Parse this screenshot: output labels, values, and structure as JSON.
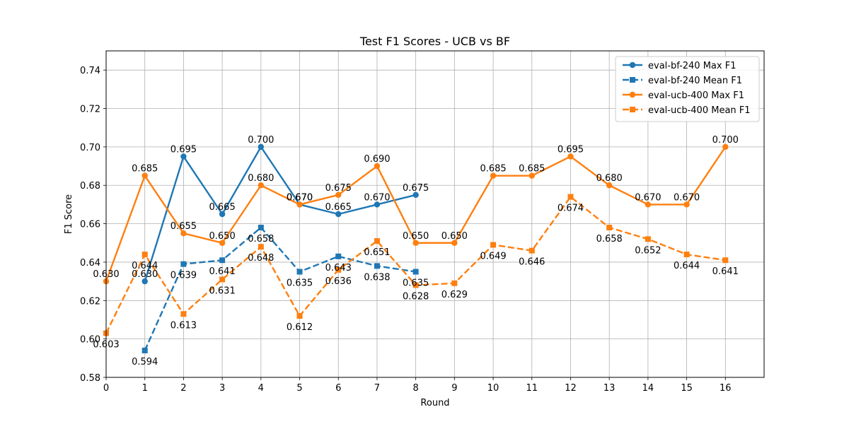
{
  "chart_data": {
    "type": "line",
    "title": "Test F1 Scores - UCB vs BF",
    "xlabel": "Round",
    "ylabel": "F1 Score",
    "xlim": [
      0,
      17
    ],
    "ylim": [
      0.58,
      0.75
    ],
    "xticks": [
      "0",
      "1",
      "2",
      "3",
      "4",
      "5",
      "6",
      "7",
      "8",
      "9",
      "10",
      "11",
      "12",
      "13",
      "14",
      "15",
      "16"
    ],
    "yticks": [
      "0.58",
      "0.60",
      "0.62",
      "0.64",
      "0.66",
      "0.68",
      "0.70",
      "0.72",
      "0.74"
    ],
    "grid": true,
    "legend_position": "top-right",
    "series": [
      {
        "name": "eval-bf-240 Max F1",
        "color": "#1f77b4",
        "style": "solid",
        "marker": "circle",
        "x": [
          1,
          2,
          3,
          4,
          5,
          6,
          7,
          8
        ],
        "values": [
          0.63,
          0.695,
          0.665,
          0.7,
          0.67,
          0.665,
          0.67,
          0.675
        ],
        "labels": [
          "0.630",
          "0.695",
          "0.665",
          "0.700",
          "0.670",
          "0.665",
          "0.670",
          "0.675"
        ]
      },
      {
        "name": "eval-bf-240 Mean F1",
        "color": "#1f77b4",
        "style": "dashed",
        "marker": "square",
        "x": [
          1,
          2,
          3,
          4,
          5,
          6,
          7,
          8
        ],
        "values": [
          0.594,
          0.639,
          0.641,
          0.658,
          0.635,
          0.643,
          0.638,
          0.635
        ],
        "labels": [
          "0.594",
          "0.639",
          "0.641",
          "0.658",
          "0.635",
          "0.643",
          "0.638",
          "0.635"
        ]
      },
      {
        "name": "eval-ucb-400 Max F1",
        "color": "#ff7f0e",
        "style": "solid",
        "marker": "circle",
        "x": [
          0,
          1,
          2,
          3,
          4,
          5,
          6,
          7,
          8,
          9,
          10,
          11,
          12,
          13,
          14,
          15,
          16
        ],
        "values": [
          0.63,
          0.685,
          0.655,
          0.65,
          0.68,
          0.67,
          0.675,
          0.69,
          0.65,
          0.65,
          0.685,
          0.685,
          0.695,
          0.68,
          0.67,
          0.67,
          0.7
        ],
        "labels": [
          "0.630",
          "0.685",
          "0.655",
          "0.650",
          "0.680",
          "0.670",
          "0.675",
          "0.690",
          "0.650",
          "0.650",
          "0.685",
          "0.685",
          "0.695",
          "0.680",
          "0.670",
          "0.670",
          "0.700"
        ]
      },
      {
        "name": "eval-ucb-400 Mean F1",
        "color": "#ff7f0e",
        "style": "dashed",
        "marker": "square",
        "x": [
          0,
          1,
          2,
          3,
          4,
          5,
          6,
          7,
          8,
          9,
          10,
          11,
          12,
          13,
          14,
          15,
          16
        ],
        "values": [
          0.603,
          0.644,
          0.613,
          0.631,
          0.648,
          0.612,
          0.636,
          0.651,
          0.628,
          0.629,
          0.649,
          0.646,
          0.674,
          0.658,
          0.652,
          0.644,
          0.641
        ],
        "labels": [
          "0.603",
          "0.644",
          "0.613",
          "0.631",
          "0.648",
          "0.612",
          "0.636",
          "0.651",
          "0.628",
          "0.629",
          "0.649",
          "0.646",
          "0.674",
          "0.658",
          "0.652",
          "0.644",
          "0.641"
        ]
      }
    ]
  }
}
